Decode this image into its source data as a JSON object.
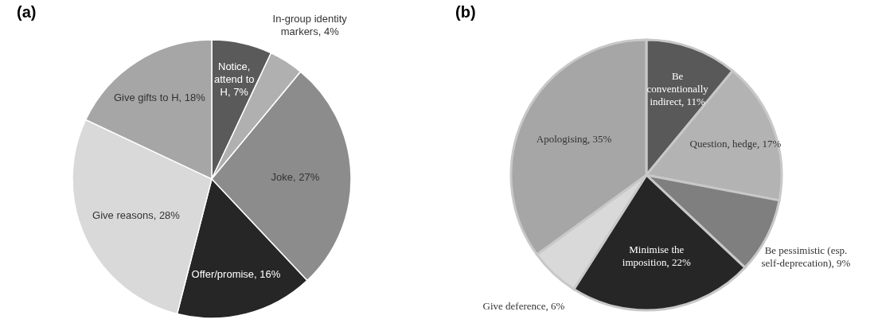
{
  "chart_data": [
    {
      "type": "pie",
      "title": "(a)",
      "categories": [
        "Notice, attend to H",
        "In-group identity markers",
        "Joke",
        "Offer/promise",
        "Give reasons",
        "Give gifts to H"
      ],
      "values": [
        7,
        4,
        27,
        16,
        28,
        18
      ],
      "value_labels": [
        "7%",
        "4%",
        "27%",
        "16%",
        "28%",
        "18%"
      ],
      "colors": [
        "#5a5a5a",
        "#b0b0b0",
        "#8c8c8c",
        "#262626",
        "#d9d9d9",
        "#a6a6a6"
      ]
    },
    {
      "type": "pie",
      "title": "(b)",
      "categories": [
        "Be conventionally indirect",
        "Question, hedge",
        "Be pessimistic (esp. self-deprecation)",
        "Minimise the imposition",
        "Give deference",
        "Apologising"
      ],
      "values": [
        11,
        17,
        9,
        22,
        6,
        35
      ],
      "value_labels": [
        "11%",
        "17%",
        "9%",
        "22%",
        "6%",
        "35%"
      ],
      "colors": [
        "#595959",
        "#b3b3b3",
        "#7f7f7f",
        "#262626",
        "#d9d9d9",
        "#a6a6a6"
      ]
    }
  ]
}
